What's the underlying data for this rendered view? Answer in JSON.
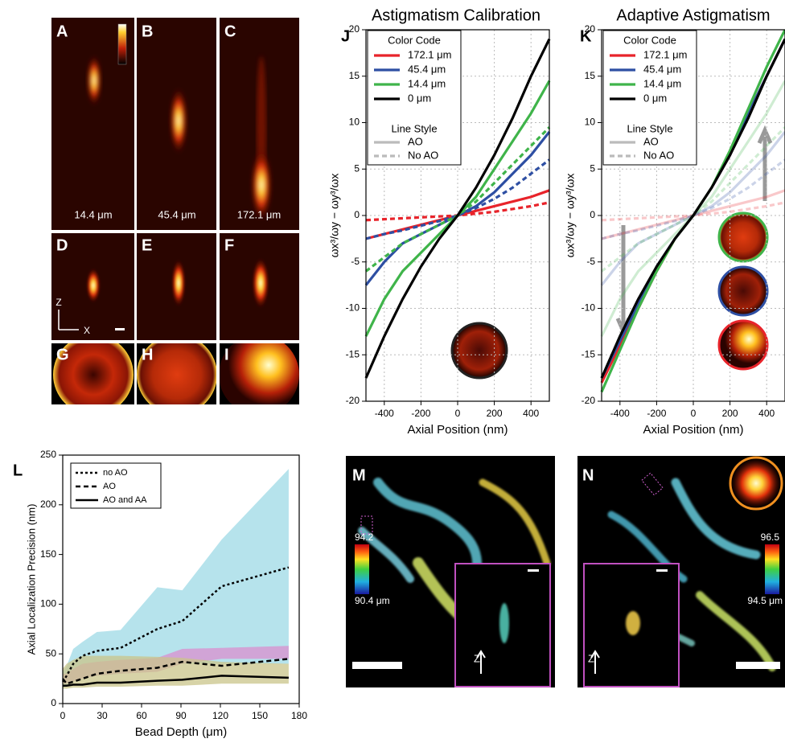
{
  "panel_labels": [
    "A",
    "B",
    "C",
    "D",
    "E",
    "F",
    "G",
    "H",
    "I",
    "J",
    "K",
    "L",
    "M",
    "N"
  ],
  "image_captions": [
    "14.4 μm",
    "45.4 μm",
    "172.1 μm"
  ],
  "psf_axis_labels": [
    "Z",
    "X"
  ],
  "colorbars": [
    {
      "top": "94.2",
      "bottom": "90.4 μm"
    },
    {
      "top": "96.5",
      "bottom": "94.5 μm"
    }
  ],
  "inset_axis_labels": [
    "Z",
    "Z"
  ],
  "chart_data": [
    {
      "type": "line",
      "title": "Astigmatism Calibration",
      "x_label": "Axial Position (nm)",
      "y_label": "ωx³/ωy − ωy³/ωx",
      "xlim": [
        -500,
        500
      ],
      "xticks": [
        -400,
        -200,
        0,
        200,
        400
      ],
      "ylim": [
        -20,
        20
      ],
      "yticks": [
        -20,
        -15,
        -10,
        -5,
        0,
        5,
        10,
        15,
        20
      ],
      "grid": true,
      "x": [
        -500,
        -400,
        -300,
        -200,
        -100,
        0,
        100,
        200,
        300,
        400,
        500
      ],
      "legend": {
        "color_title": "Color Code",
        "colors": [
          {
            "label": "172.1 μm",
            "color": "#e8232a"
          },
          {
            "label": "45.4 μm",
            "color": "#2e4fa3"
          },
          {
            "label": "14.4 μm",
            "color": "#3fb44a"
          },
          {
            "label": "0 μm",
            "color": "#000000"
          }
        ],
        "style_title": "Line Style",
        "styles": [
          {
            "label": "AO",
            "style": "solid"
          },
          {
            "label": "No AO",
            "style": "dashed"
          }
        ]
      },
      "series": [
        {
          "color": "#e8232a",
          "style": "solid",
          "opacity": 1,
          "values": [
            -2.5,
            -2,
            -1.5,
            -1,
            -0.5,
            0,
            0.5,
            1,
            1.5,
            2,
            2.7
          ]
        },
        {
          "color": "#e8232a",
          "style": "dashed",
          "opacity": 1,
          "values": [
            -0.5,
            -0.4,
            -0.3,
            -0.2,
            -0.1,
            0,
            0.2,
            0.4,
            0.7,
            1,
            1.4
          ]
        },
        {
          "color": "#2e4fa3",
          "style": "solid",
          "opacity": 1,
          "values": [
            -7.5,
            -5,
            -3,
            -2,
            -1,
            0,
            1,
            2.5,
            4.5,
            6.5,
            9
          ]
        },
        {
          "color": "#2e4fa3",
          "style": "dashed",
          "opacity": 1,
          "values": [
            -2.5,
            -2,
            -1.6,
            -1.1,
            -0.6,
            0,
            0.8,
            1.8,
            3,
            4.5,
            6
          ]
        },
        {
          "color": "#3fb44a",
          "style": "solid",
          "opacity": 1,
          "values": [
            -13,
            -9,
            -6,
            -4,
            -2,
            0,
            2,
            5,
            8,
            11,
            14.5
          ]
        },
        {
          "color": "#3fb44a",
          "style": "dashed",
          "opacity": 1,
          "values": [
            -6,
            -4.5,
            -3,
            -2,
            -1,
            0,
            1.5,
            3.5,
            5.5,
            7.5,
            9.5
          ]
        },
        {
          "color": "#000000",
          "style": "solid",
          "opacity": 1,
          "values": [
            -17.5,
            -13,
            -9,
            -5.5,
            -2.5,
            0,
            3,
            6.5,
            10.5,
            15,
            19
          ]
        }
      ]
    },
    {
      "type": "line",
      "title": "Adaptive Astigmatism",
      "x_label": "Axial Position (nm)",
      "y_label": "ωx³/ωy − ωy³/ωx",
      "xlim": [
        -500,
        500
      ],
      "xticks": [
        -400,
        -200,
        0,
        200,
        400
      ],
      "ylim": [
        -20,
        20
      ],
      "yticks": [
        -20,
        -15,
        -10,
        -5,
        0,
        5,
        10,
        15,
        20
      ],
      "grid": true,
      "x": [
        -500,
        -400,
        -300,
        -200,
        -100,
        0,
        100,
        200,
        300,
        400,
        500
      ],
      "legend": {
        "color_title": "Color Code",
        "colors": [
          {
            "label": "172.1 μm",
            "color": "#e8232a"
          },
          {
            "label": "45.4 μm",
            "color": "#2e4fa3"
          },
          {
            "label": "14.4 μm",
            "color": "#3fb44a"
          },
          {
            "label": "0 μm",
            "color": "#000000"
          }
        ],
        "style_title": "Line Style",
        "styles": [
          {
            "label": "AO",
            "style": "solid"
          },
          {
            "label": "No AO",
            "style": "dashed"
          }
        ]
      },
      "series": [
        {
          "color": "#e8232a",
          "style": "solid",
          "opacity": 0.25,
          "values": [
            -2.5,
            -2,
            -1.5,
            -1,
            -0.5,
            0,
            0.5,
            1,
            1.5,
            2,
            2.7
          ]
        },
        {
          "color": "#e8232a",
          "style": "dashed",
          "opacity": 0.25,
          "values": [
            -0.5,
            -0.4,
            -0.3,
            -0.2,
            -0.1,
            0,
            0.2,
            0.4,
            0.7,
            1,
            1.4
          ]
        },
        {
          "color": "#2e4fa3",
          "style": "solid",
          "opacity": 0.25,
          "values": [
            -7.5,
            -5,
            -3,
            -2,
            -1,
            0,
            1,
            2.5,
            4.5,
            6.5,
            9
          ]
        },
        {
          "color": "#2e4fa3",
          "style": "dashed",
          "opacity": 0.25,
          "values": [
            -2.5,
            -2,
            -1.6,
            -1.1,
            -0.6,
            0,
            0.8,
            1.8,
            3,
            4.5,
            6
          ]
        },
        {
          "color": "#3fb44a",
          "style": "solid",
          "opacity": 0.25,
          "values": [
            -13,
            -9,
            -6,
            -4,
            -2,
            0,
            2,
            5,
            8,
            11,
            14.5
          ]
        },
        {
          "color": "#3fb44a",
          "style": "dashed",
          "opacity": 0.25,
          "values": [
            -6,
            -4.5,
            -3,
            -2,
            -1,
            0,
            1.5,
            3.5,
            5.5,
            7.5,
            9.5
          ]
        },
        {
          "color": "#e8232a",
          "style": "solid",
          "opacity": 1,
          "values": [
            -18,
            -14,
            -10,
            -6,
            -2.5,
            0,
            3,
            6.5,
            11,
            15,
            19
          ]
        },
        {
          "color": "#2e4fa3",
          "style": "solid",
          "opacity": 1,
          "values": [
            -17.5,
            -13.5,
            -9.5,
            -5.5,
            -2.5,
            0,
            3,
            6.5,
            11,
            15,
            19
          ]
        },
        {
          "color": "#3fb44a",
          "style": "solid",
          "opacity": 1,
          "values": [
            -19,
            -14.5,
            -10,
            -6,
            -2.5,
            0,
            3,
            7,
            11.5,
            16,
            20
          ]
        },
        {
          "color": "#000000",
          "style": "solid",
          "opacity": 1,
          "values": [
            -17.5,
            -13,
            -9,
            -5.5,
            -2.5,
            0,
            3,
            6.5,
            10.5,
            15,
            19
          ]
        }
      ]
    },
    {
      "type": "area_line",
      "x_label": "Bead Depth (μm)",
      "y_label": "Axial Localization Precision (nm)",
      "xlim": [
        0,
        180
      ],
      "xticks": [
        0,
        30,
        60,
        90,
        120,
        150,
        180
      ],
      "ylim": [
        0,
        250
      ],
      "yticks": [
        0,
        50,
        100,
        150,
        200,
        250
      ],
      "grid": false,
      "x": [
        0,
        3,
        8,
        15,
        26,
        44,
        72,
        91,
        121,
        172
      ],
      "bands": [
        {
          "color": "#9dd9e6",
          "upper": [
            32,
            38,
            55,
            62,
            72,
            74,
            117,
            114,
            165,
            236
          ],
          "lower": [
            15,
            18,
            22,
            25,
            28,
            30,
            35,
            40,
            40,
            40
          ]
        },
        {
          "color": "#d98fcf",
          "upper": [
            30,
            30,
            35,
            40,
            42,
            44,
            46,
            55,
            56,
            58
          ],
          "lower": [
            20,
            20,
            22,
            25,
            28,
            30,
            32,
            40,
            45,
            45
          ]
        },
        {
          "color": "#c9c48a",
          "upper": [
            35,
            40,
            44,
            48,
            48,
            48,
            47,
            46,
            42,
            40
          ],
          "lower": [
            15,
            15,
            16,
            16,
            17,
            17,
            18,
            18,
            20,
            20
          ]
        }
      ],
      "series": [
        {
          "name": "no AO",
          "color": "#000000",
          "style": "dotted",
          "values": [
            22,
            28,
            40,
            48,
            53,
            56,
            75,
            83,
            118,
            137
          ]
        },
        {
          "name": "AO",
          "color": "#000000",
          "style": "dashed",
          "values": [
            25,
            20,
            22,
            25,
            30,
            33,
            36,
            42,
            38,
            45
          ]
        },
        {
          "name": "AO and AA",
          "color": "#000000",
          "style": "solid",
          "values": [
            18,
            18,
            19,
            19,
            21,
            21,
            23,
            24,
            28,
            26
          ]
        }
      ]
    }
  ]
}
